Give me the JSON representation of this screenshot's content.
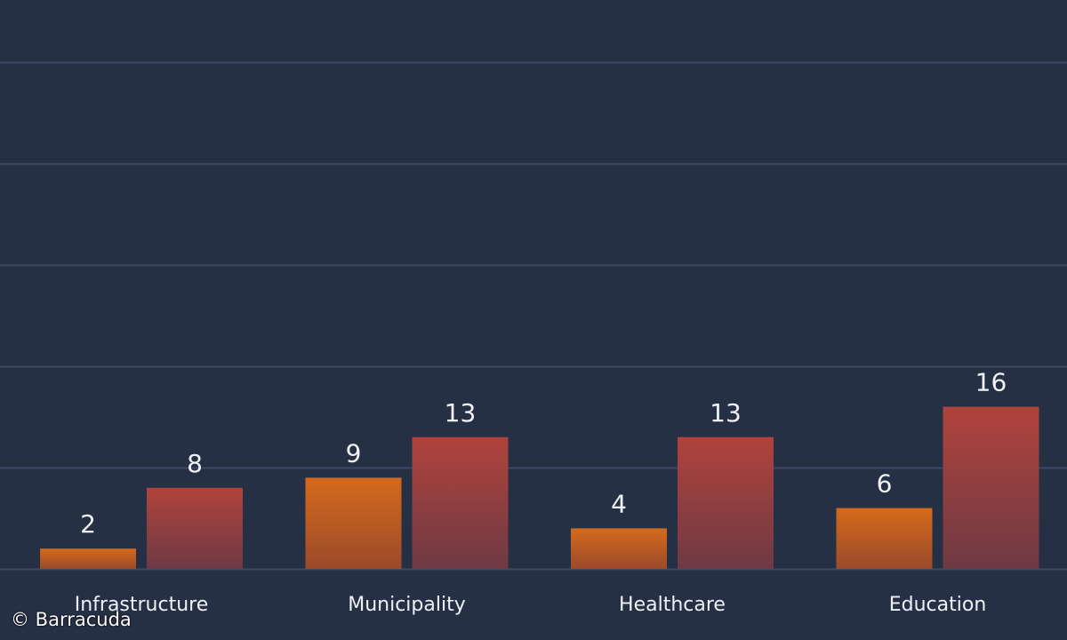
{
  "chart_data": {
    "type": "bar",
    "categories": [
      "Infrastructure",
      "Municipality",
      "Healthcare",
      "Education"
    ],
    "series": [
      {
        "values": [
          2,
          9,
          4,
          6
        ],
        "color": "#d46a1c",
        "color_bottom": "#9b4a2b"
      },
      {
        "values": [
          8,
          13,
          13,
          16
        ],
        "color": "#b0433c",
        "color_bottom": "#6e3a44"
      }
    ],
    "ylim": [
      0,
      50
    ],
    "grid": true,
    "gridline_color": "#3d4862",
    "label_color": "#eef1f6"
  },
  "credit": "© Barracuda"
}
